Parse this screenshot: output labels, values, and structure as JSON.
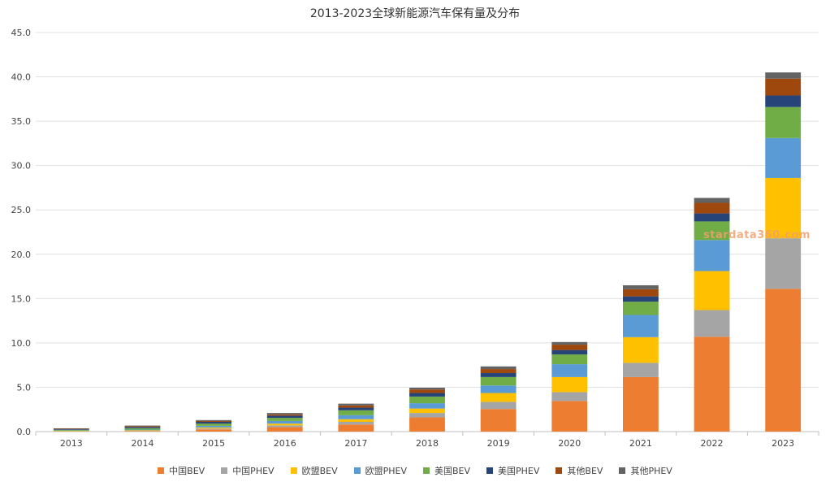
{
  "chart_data": {
    "type": "bar",
    "stacked": true,
    "title": "2013-2023全球新能源汽车保有量及分布",
    "xlabel": "",
    "ylabel": "",
    "ylim": [
      0,
      45
    ],
    "yticks": [
      "0.0",
      "5.0",
      "10.0",
      "15.0",
      "20.0",
      "25.0",
      "30.0",
      "35.0",
      "40.0",
      "45.0"
    ],
    "grid": true,
    "legend_position": "bottom",
    "categories": [
      "2013",
      "2014",
      "2015",
      "2016",
      "2017",
      "2018",
      "2019",
      "2020",
      "2021",
      "2022",
      "2023"
    ],
    "series": [
      {
        "name": "中国BEV",
        "color": "#ed7d31",
        "values": [
          0.02,
          0.05,
          0.25,
          0.5,
          0.8,
          1.6,
          2.55,
          3.45,
          6.15,
          10.7,
          16.1
        ]
      },
      {
        "name": "中国PHEV",
        "color": "#a5a5a5",
        "values": [
          0.01,
          0.03,
          0.1,
          0.2,
          0.3,
          0.5,
          0.8,
          1.0,
          1.6,
          3.0,
          5.7
        ]
      },
      {
        "name": "欧盟BEV",
        "color": "#ffc000",
        "values": [
          0.05,
          0.07,
          0.12,
          0.2,
          0.3,
          0.5,
          1.0,
          1.7,
          2.9,
          4.4,
          6.8
        ]
      },
      {
        "name": "欧盟PHEV",
        "color": "#5b9bd5",
        "values": [
          0.04,
          0.08,
          0.18,
          0.3,
          0.45,
          0.6,
          0.85,
          1.45,
          2.5,
          3.5,
          4.5
        ]
      },
      {
        "name": "美国BEV",
        "color": "#70ad47",
        "values": [
          0.08,
          0.15,
          0.25,
          0.35,
          0.55,
          0.75,
          0.95,
          1.1,
          1.5,
          2.1,
          3.5
        ]
      },
      {
        "name": "美国PHEV",
        "color": "#264478",
        "values": [
          0.07,
          0.14,
          0.2,
          0.25,
          0.3,
          0.4,
          0.45,
          0.5,
          0.6,
          0.9,
          1.3
        ]
      },
      {
        "name": "其他BEV",
        "color": "#9e480e",
        "values": [
          0.05,
          0.08,
          0.1,
          0.15,
          0.25,
          0.4,
          0.45,
          0.6,
          0.8,
          1.2,
          1.9
        ]
      },
      {
        "name": "其他PHEV",
        "color": "#636363",
        "values": [
          0.05,
          0.08,
          0.1,
          0.15,
          0.2,
          0.2,
          0.3,
          0.3,
          0.45,
          0.55,
          0.7
        ]
      }
    ]
  },
  "watermark": "stardata360.com"
}
